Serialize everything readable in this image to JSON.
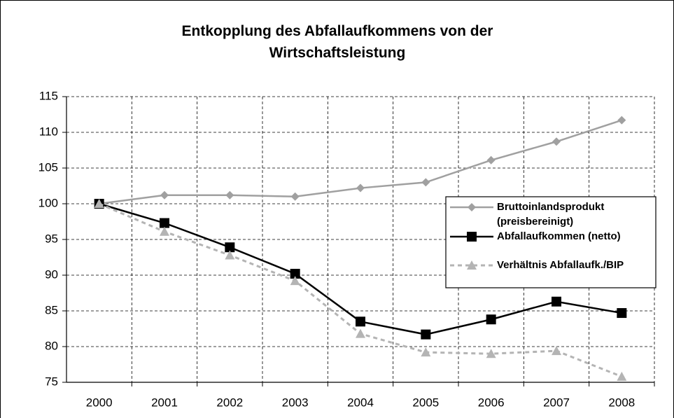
{
  "chart_data": {
    "type": "line",
    "title": "Entkopplung des Abfallaufkommens von der Wirtschaftsleistung",
    "categories": [
      "2000",
      "2001",
      "2002",
      "2003",
      "2004",
      "2005",
      "2006",
      "2007",
      "2008"
    ],
    "series": [
      {
        "name": "Bruttoinlandsprodukt (preisbereinigt)",
        "color": "#a0a0a0",
        "marker": "diamond",
        "dashed": false,
        "values": [
          100,
          101.2,
          101.2,
          101.0,
          102.2,
          103.0,
          106.1,
          108.7,
          111.7
        ]
      },
      {
        "name": "Abfallaufkommen (netto)",
        "color": "#000000",
        "marker": "square",
        "dashed": false,
        "values": [
          100,
          97.3,
          93.9,
          90.2,
          83.5,
          81.7,
          83.8,
          86.3,
          84.7
        ]
      },
      {
        "name": "Verhältnis Abfallaufk./BIP",
        "color": "#b4b4b4",
        "marker": "triangle",
        "dashed": true,
        "values": [
          100,
          96.1,
          92.8,
          89.2,
          81.8,
          79.2,
          79.0,
          79.4,
          75.8
        ]
      }
    ],
    "ylim": [
      75,
      115
    ],
    "yticks": [
      75,
      80,
      85,
      90,
      95,
      100,
      105,
      110,
      115
    ],
    "grid": true,
    "legend": "right"
  }
}
